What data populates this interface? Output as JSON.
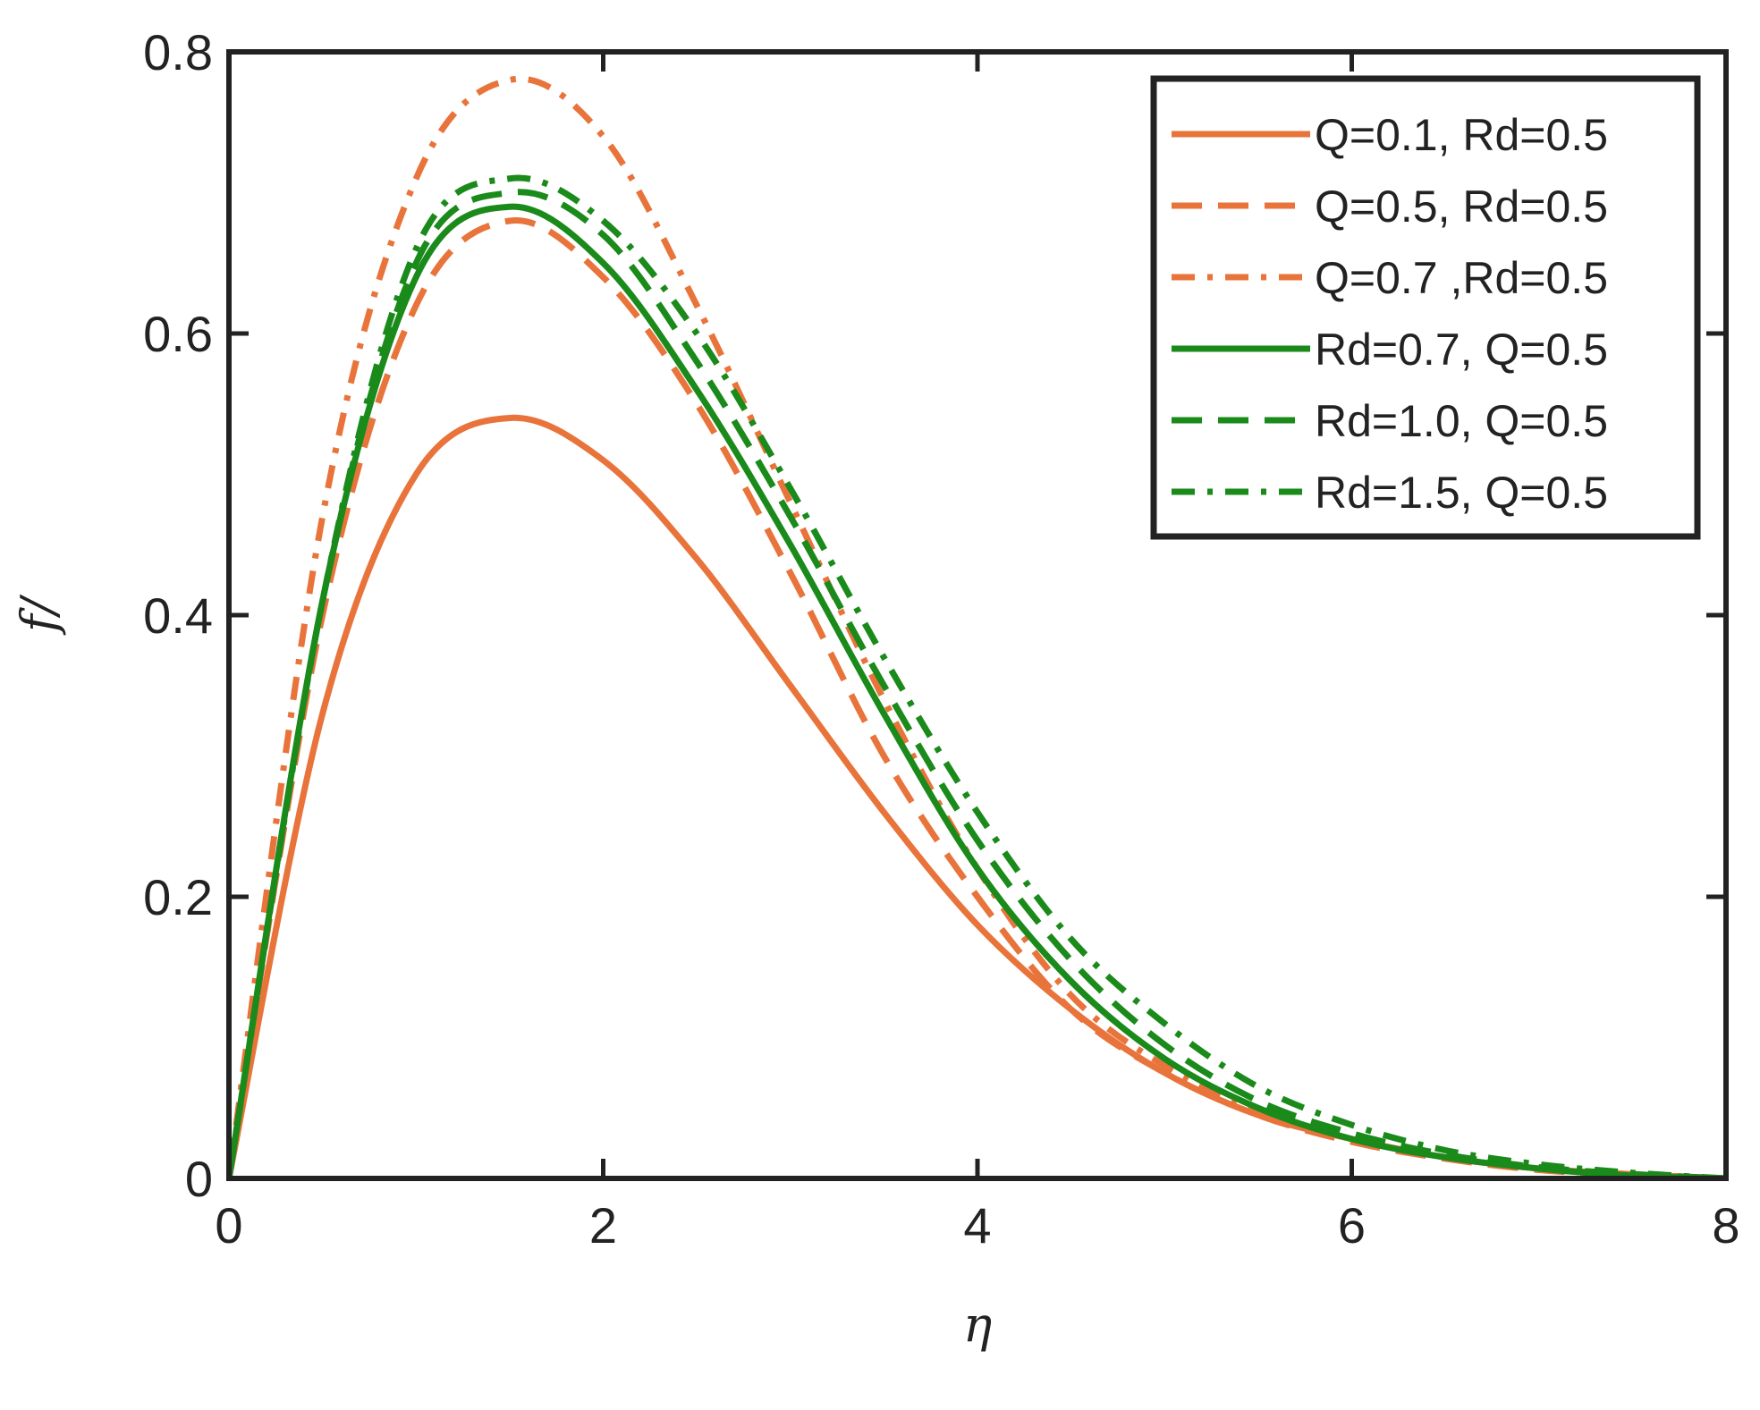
{
  "chart_data": {
    "type": "line",
    "title": "",
    "xlabel": "η",
    "ylabel": "f/",
    "xlim": [
      0,
      8
    ],
    "ylim": [
      0,
      0.8
    ],
    "xticks": [
      0,
      2,
      4,
      6,
      8
    ],
    "yticks": [
      0,
      0.2,
      0.4,
      0.6,
      0.8
    ],
    "xtick_labels": [
      "0",
      "2",
      "4",
      "6",
      "8"
    ],
    "ytick_labels": [
      "0",
      "0.2",
      "0.4",
      "0.6",
      "0.8"
    ],
    "grid": false,
    "legend_position": "top-right",
    "x": [
      0,
      0.5,
      1.0,
      1.5,
      2.0,
      2.5,
      3.0,
      3.5,
      4.0,
      4.5,
      5.0,
      5.5,
      6.0,
      6.5,
      7.0,
      7.5,
      8.0
    ],
    "series": [
      {
        "name": "Q=0.1, Rd=0.5",
        "color": "#E8743B",
        "dash": "solid",
        "values": [
          0,
          0.33,
          0.5,
          0.54,
          0.51,
          0.44,
          0.35,
          0.26,
          0.18,
          0.12,
          0.075,
          0.045,
          0.028,
          0.015,
          0.007,
          0.003,
          0
        ]
      },
      {
        "name": "Q=0.5, Rd=0.5",
        "color": "#E8743B",
        "dash": "dashed",
        "values": [
          0,
          0.4,
          0.62,
          0.68,
          0.64,
          0.55,
          0.43,
          0.3,
          0.2,
          0.12,
          0.075,
          0.045,
          0.026,
          0.014,
          0.006,
          0.002,
          0
        ]
      },
      {
        "name": "Q=0.7 ,Rd=0.5",
        "color": "#E8743B",
        "dash": "dashdot",
        "values": [
          0,
          0.47,
          0.71,
          0.78,
          0.74,
          0.62,
          0.48,
          0.34,
          0.22,
          0.13,
          0.08,
          0.048,
          0.028,
          0.015,
          0.007,
          0.002,
          0
        ]
      },
      {
        "name": "Rd=0.7, Q=0.5",
        "color": "#1A8A1A",
        "dash": "solid",
        "values": [
          0,
          0.41,
          0.64,
          0.69,
          0.65,
          0.56,
          0.45,
          0.33,
          0.22,
          0.14,
          0.085,
          0.05,
          0.028,
          0.015,
          0.007,
          0.002,
          0
        ]
      },
      {
        "name": "Rd=1.0, Q=0.5",
        "color": "#1A8A1A",
        "dash": "dashed",
        "values": [
          0,
          0.41,
          0.65,
          0.7,
          0.67,
          0.58,
          0.47,
          0.35,
          0.24,
          0.155,
          0.095,
          0.055,
          0.032,
          0.017,
          0.008,
          0.003,
          0
        ]
      },
      {
        "name": "Rd=1.5, Q=0.5",
        "color": "#1A8A1A",
        "dash": "dashdot",
        "values": [
          0,
          0.41,
          0.66,
          0.71,
          0.68,
          0.6,
          0.49,
          0.37,
          0.26,
          0.17,
          0.11,
          0.065,
          0.038,
          0.02,
          0.01,
          0.004,
          0
        ]
      }
    ]
  }
}
